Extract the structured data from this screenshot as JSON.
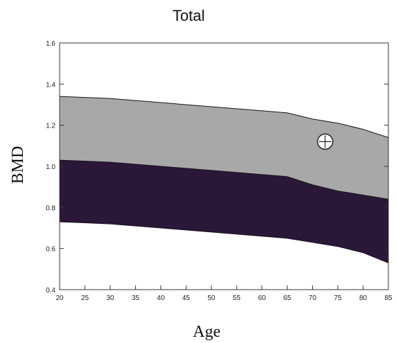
{
  "chart_data": {
    "type": "area",
    "title": "Total",
    "xlabel": "Age",
    "ylabel": "BMD",
    "xlim": [
      20,
      85
    ],
    "ylim": [
      0.4,
      1.6
    ],
    "x_ticks": [
      "20",
      "25",
      "30",
      "35",
      "40",
      "45",
      "50",
      "55",
      "60",
      "65",
      "70",
      "75",
      "80",
      "85"
    ],
    "y_ticks": [
      "0.4",
      "0.6",
      "0.8",
      "1.0",
      "1.2",
      "1.4",
      "1.6"
    ],
    "grid": false,
    "bands": [
      {
        "x": [
          20,
          30,
          40,
          50,
          60,
          65,
          70,
          75,
          80,
          85
        ],
        "lower": [
          0.73,
          0.72,
          0.7,
          0.68,
          0.66,
          0.65,
          0.63,
          0.61,
          0.58,
          0.53
        ],
        "upper": [
          1.03,
          1.02,
          1.0,
          0.98,
          0.96,
          0.95,
          0.91,
          0.88,
          0.86,
          0.84
        ],
        "color": "#2b1838"
      },
      {
        "x": [
          20,
          30,
          40,
          50,
          60,
          65,
          70,
          75,
          80,
          85
        ],
        "lower": [
          1.03,
          1.02,
          1.0,
          0.98,
          0.96,
          0.95,
          0.91,
          0.88,
          0.86,
          0.84
        ],
        "upper": [
          1.34,
          1.33,
          1.31,
          1.29,
          1.27,
          1.26,
          1.23,
          1.21,
          1.18,
          1.14
        ],
        "color": "#a8a8a8"
      }
    ],
    "marker": {
      "x": 72.5,
      "y": 1.12
    }
  }
}
